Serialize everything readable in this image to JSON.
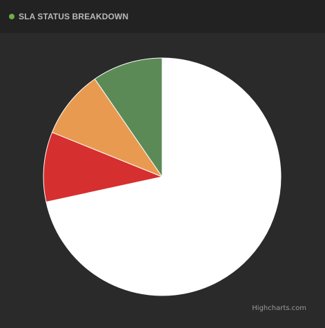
{
  "header": {
    "title": "SLA STATUS BREAKDOWN",
    "status_color": "#6fae45"
  },
  "chart_data": {
    "type": "pie",
    "title": "",
    "unit": "%",
    "start_angle_deg": 0,
    "direction": "clockwise",
    "slices": [
      {
        "value": 71.6,
        "color": "#ffffff"
      },
      {
        "value": 9.5,
        "color": "#d62f2f"
      },
      {
        "value": 9.3,
        "color": "#e89b50"
      },
      {
        "value": 9.6,
        "color": "#5c8a57"
      }
    ]
  },
  "credit": {
    "label": "Highcharts.com"
  }
}
